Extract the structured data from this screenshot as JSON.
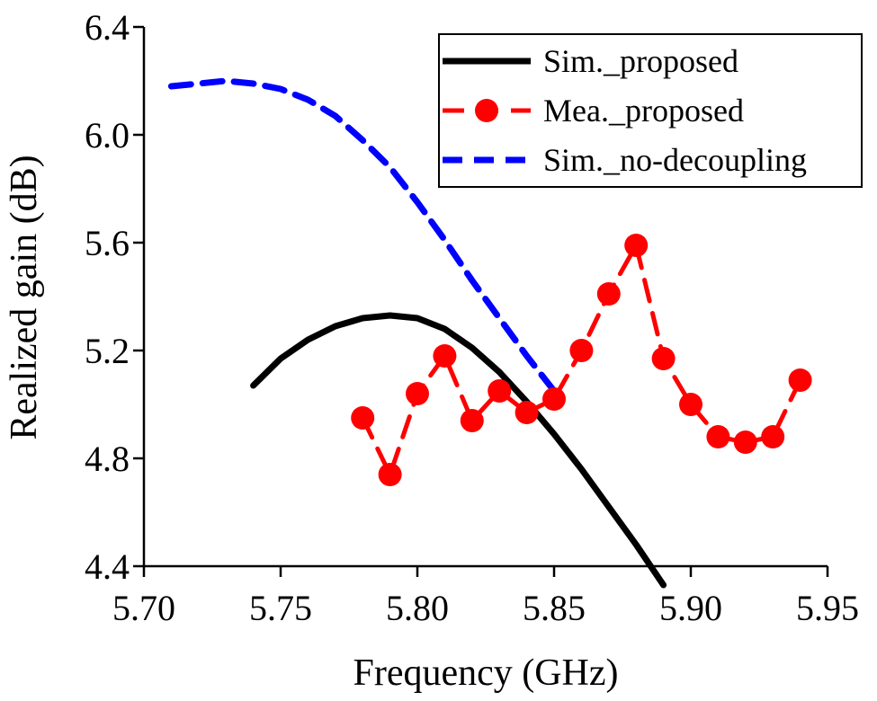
{
  "chart_data": {
    "type": "line",
    "title": "",
    "xlabel": "Frequency (GHz)",
    "ylabel": "Realized gain (dB)",
    "xlim": [
      5.7,
      5.95
    ],
    "ylim": [
      4.4,
      6.4
    ],
    "xticks": [
      "5.70",
      "5.75",
      "5.80",
      "5.85",
      "5.90",
      "5.95"
    ],
    "yticks": [
      "4.4",
      "4.8",
      "5.2",
      "5.6",
      "6.0",
      "6.4"
    ],
    "grid": false,
    "legend_position": "top-right",
    "series": [
      {
        "name": "Sim._proposed",
        "color": "#000000",
        "style": "solid",
        "marker": "none",
        "x": [
          5.74,
          5.75,
          5.76,
          5.77,
          5.78,
          5.79,
          5.8,
          5.81,
          5.82,
          5.83,
          5.84,
          5.85,
          5.86,
          5.87,
          5.88,
          5.89
        ],
        "y": [
          5.07,
          5.17,
          5.24,
          5.29,
          5.32,
          5.33,
          5.32,
          5.28,
          5.21,
          5.12,
          5.01,
          4.89,
          4.76,
          4.62,
          4.48,
          4.33
        ]
      },
      {
        "name": "Mea._proposed",
        "color": "#ff0000",
        "style": "dashed",
        "marker": "circle",
        "x": [
          5.78,
          5.79,
          5.8,
          5.81,
          5.82,
          5.83,
          5.84,
          5.85,
          5.86,
          5.87,
          5.88,
          5.89,
          5.9,
          5.91,
          5.92,
          5.93,
          5.94
        ],
        "y": [
          4.95,
          4.74,
          5.04,
          5.18,
          4.94,
          5.05,
          4.97,
          5.02,
          5.2,
          5.41,
          5.59,
          5.17,
          5.0,
          4.88,
          4.86,
          4.88,
          5.09
        ]
      },
      {
        "name": "Sim._no-decoupling",
        "color": "#0000ff",
        "style": "dashed",
        "marker": "none",
        "x": [
          5.71,
          5.72,
          5.73,
          5.74,
          5.75,
          5.76,
          5.77,
          5.78,
          5.79,
          5.8,
          5.81,
          5.82,
          5.83,
          5.84,
          5.85
        ],
        "y": [
          6.18,
          6.19,
          6.2,
          6.19,
          6.17,
          6.13,
          6.07,
          5.98,
          5.88,
          5.75,
          5.61,
          5.46,
          5.32,
          5.18,
          5.05
        ]
      }
    ]
  }
}
